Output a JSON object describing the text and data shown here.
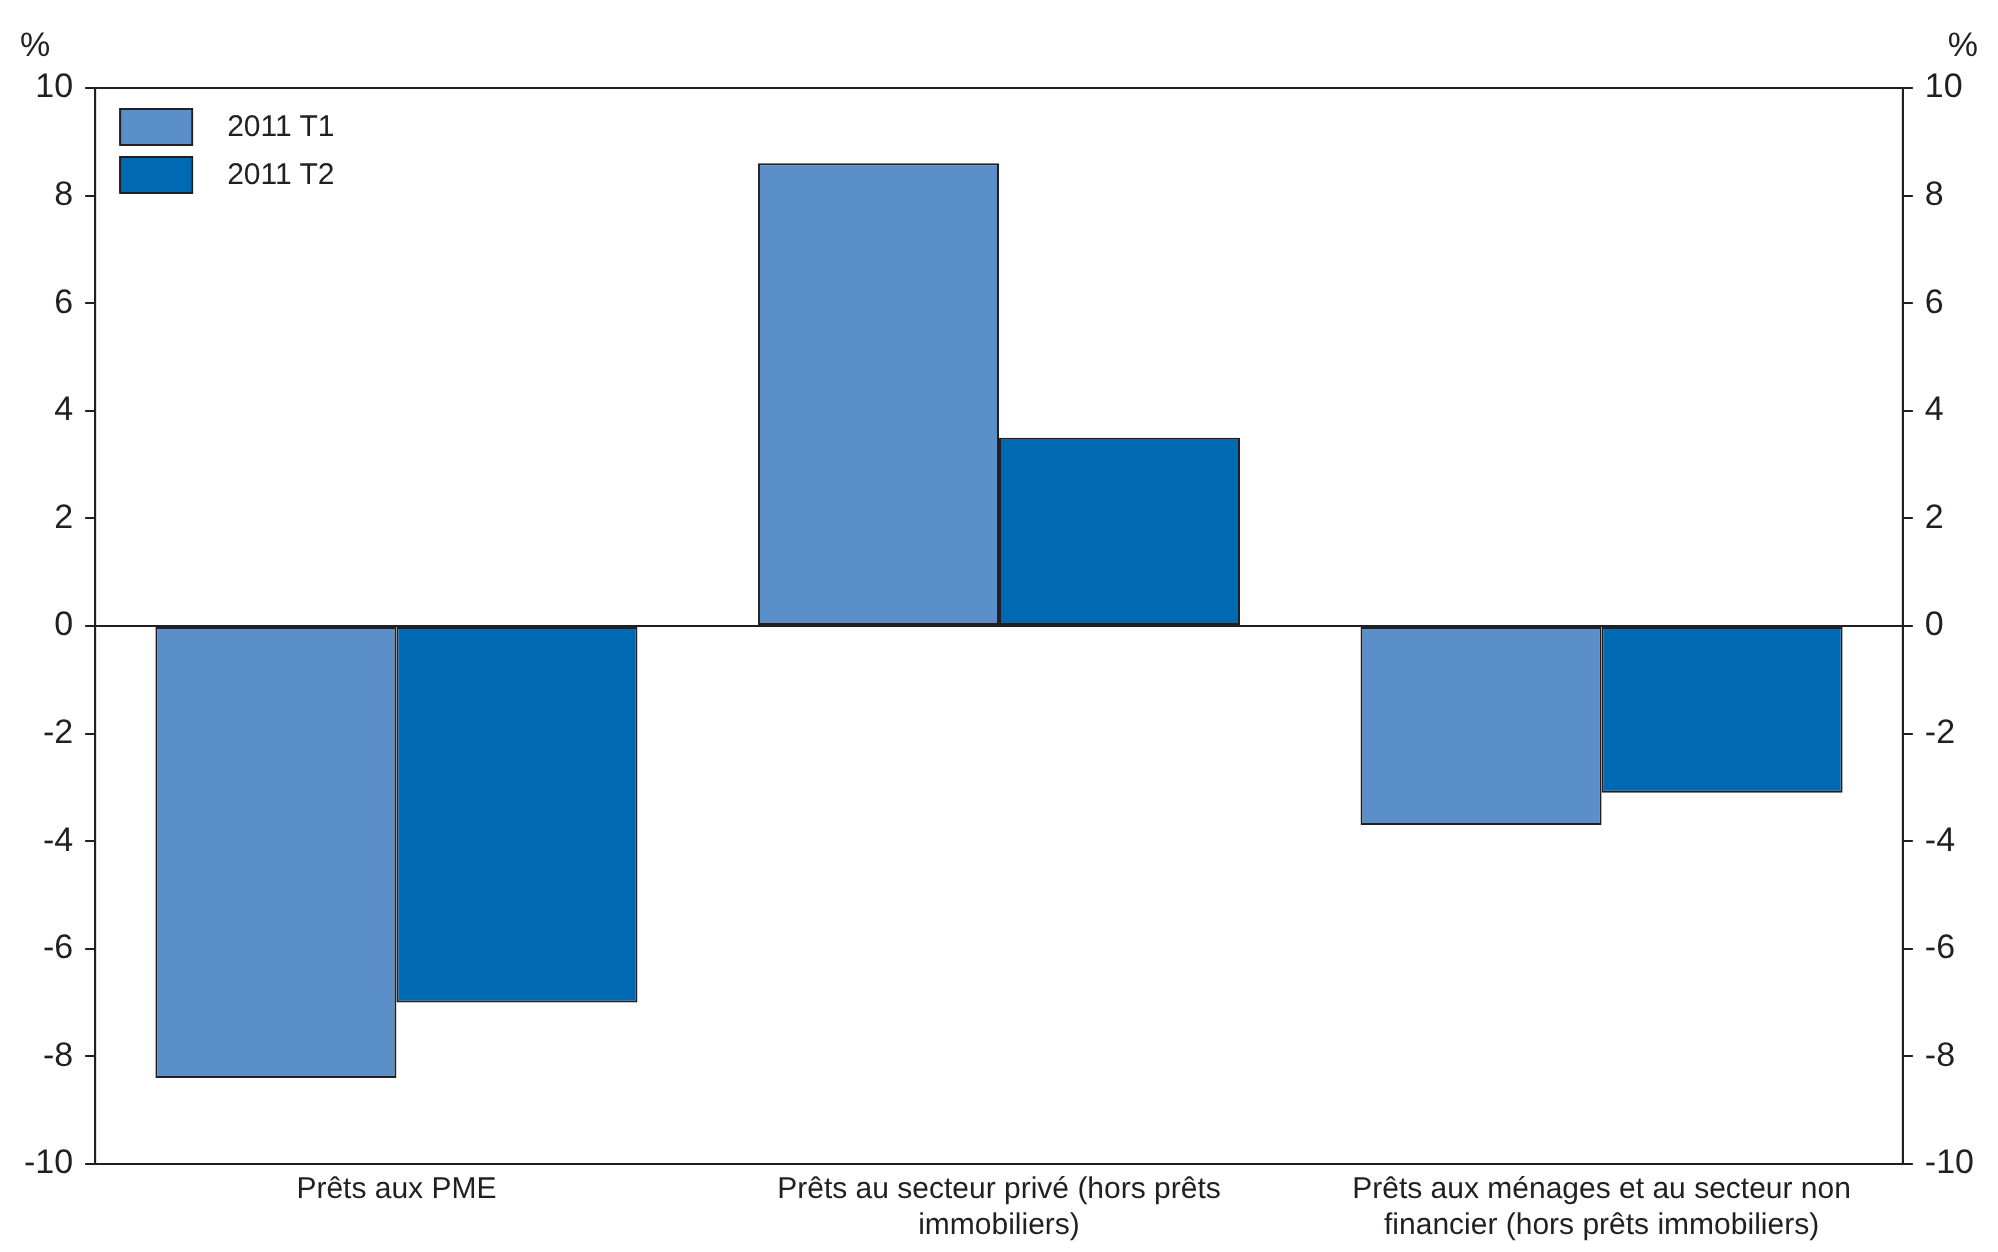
{
  "chart_data": {
    "type": "bar",
    "ylabel": "%",
    "y2label": "%",
    "categories": [
      "Prêts aux PME",
      "Prêts au secteur privé (hors prêts immobiliers)",
      "Prêts aux ménages et au secteur non financier (hors prêts immobiliers)"
    ],
    "series": [
      {
        "name": "2011 T1",
        "color": "#5b8fc9",
        "values": [
          -8.4,
          8.6,
          -3.7
        ]
      },
      {
        "name": "2011 T2",
        "color": "#0069b4",
        "values": [
          -7.0,
          3.5,
          -3.1
        ]
      }
    ],
    "ylim": [
      -10,
      10
    ],
    "yticks": [
      -10,
      -8,
      -6,
      -4,
      -2,
      0,
      2,
      4,
      6,
      8,
      10
    ],
    "y2lim": [
      -10,
      10
    ],
    "y2ticks": [
      -10,
      -8,
      -6,
      -4,
      -2,
      0,
      2,
      4,
      6,
      8,
      10
    ],
    "ref_lines": [
      {
        "axis": "y",
        "value": 0,
        "color": "#231f20"
      }
    ],
    "grid": false,
    "legend": "top left"
  }
}
